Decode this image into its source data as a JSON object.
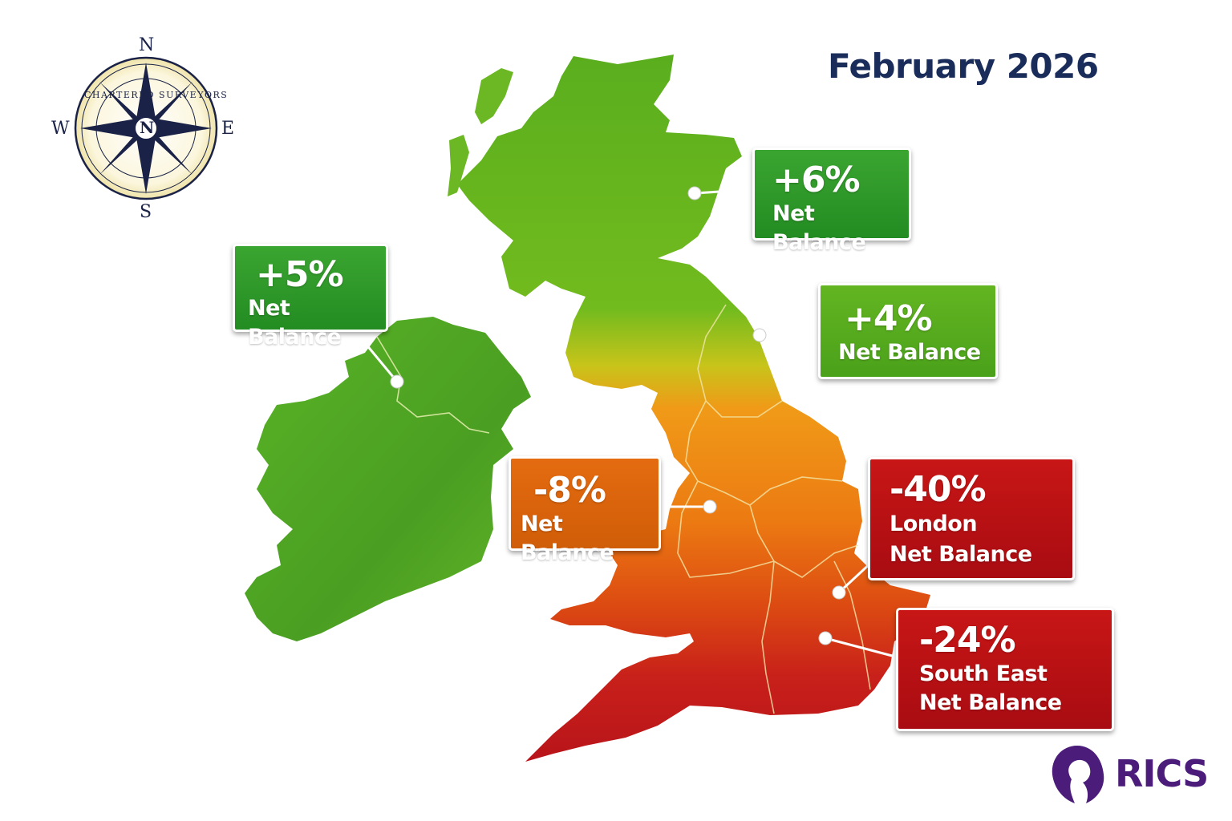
{
  "title": "February 2026",
  "compass": {
    "north": "N",
    "south": "S",
    "east": "E",
    "west": "W",
    "center": "N",
    "ring_text": "CHARTERED SURVEYORS"
  },
  "logo": {
    "text": "RICS",
    "icon": "lion-head-icon"
  },
  "regions": [
    {
      "id": "scotland",
      "value": "+6%",
      "label": "Net Balance",
      "color": "#2a962a"
    },
    {
      "id": "ireland",
      "value": "+5%",
      "label": "Net Balance",
      "color": "#2a962a"
    },
    {
      "id": "north-east",
      "value": "+4%",
      "label": "Net Balance",
      "color": "#56ab1f"
    },
    {
      "id": "midlands",
      "value": "-8%",
      "label": "Net Balance",
      "color": "#dc650c"
    },
    {
      "id": "london",
      "value": "-40%",
      "label_line1": "London",
      "label_line2": "Net Balance",
      "color": "#b81014"
    },
    {
      "id": "south-east",
      "value": "-24%",
      "label_line1": "South East",
      "label_line2": "Net Balance",
      "color": "#b81014"
    }
  ]
}
